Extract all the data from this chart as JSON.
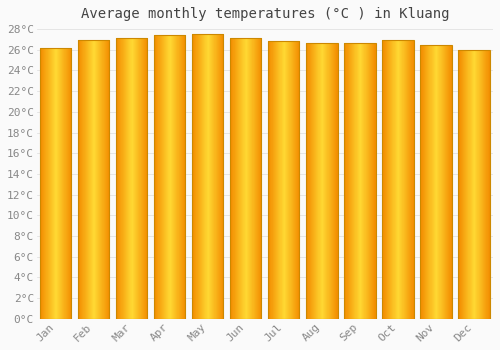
{
  "title": "Average monthly temperatures (°C ) in Kluang",
  "months": [
    "Jan",
    "Feb",
    "Mar",
    "Apr",
    "May",
    "Jun",
    "Jul",
    "Aug",
    "Sep",
    "Oct",
    "Nov",
    "Dec"
  ],
  "values": [
    26.2,
    26.9,
    27.1,
    27.4,
    27.5,
    27.1,
    26.8,
    26.7,
    26.7,
    26.9,
    26.5,
    26.0
  ],
  "bar_color_light": "#FFD966",
  "bar_color_mid": "#FFAA00",
  "bar_color_dark": "#E89000",
  "bar_edge_color": "#CC8800",
  "background_color": "#FAFAFA",
  "grid_color": "#DDDDDD",
  "ylim": [
    0,
    28
  ],
  "ytick_step": 2,
  "title_fontsize": 10,
  "tick_fontsize": 8,
  "font_family": "monospace",
  "bar_width": 0.82
}
